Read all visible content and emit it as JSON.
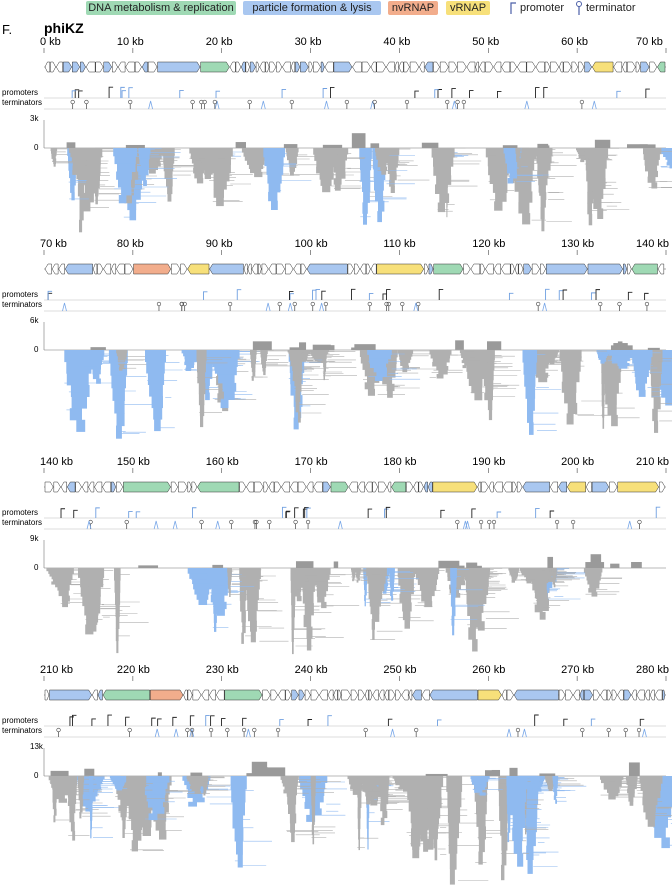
{
  "figure": {
    "panel_letter": "F.",
    "title": "phiKZ"
  },
  "legend": {
    "dna": {
      "label": "DNA metabolism & replication",
      "color": "#9fd9b4"
    },
    "particle": {
      "label": "particle formation & lysis",
      "color": "#a9c7f0"
    },
    "nvrnap": {
      "label": "nvRNAP",
      "color": "#f2ad8c"
    },
    "vrnap": {
      "label": "vRNAP",
      "color": "#f7e07a"
    },
    "promoter": {
      "label": "promoter",
      "icon": "promoter-icon"
    },
    "terminator": {
      "label": "terminator",
      "icon": "terminator-icon"
    }
  },
  "colors": {
    "default_gene": "#ffffff",
    "coverage_gray": "#b0b0b0",
    "coverage_blue": "#8fbaf0",
    "track_line": "#bbbbbb",
    "feature_dark": "#222222"
  },
  "track_labels": {
    "promoters": "promoters",
    "terminators": "terminators",
    "zero": "0"
  },
  "rows": [
    {
      "id": "row1",
      "start_kb": 0,
      "end_kb": 70,
      "ticks": [
        "0 kb",
        "10 kb",
        "20 kb",
        "30 kb",
        "40 kb",
        "50 kb",
        "60 kb",
        "70 kb"
      ],
      "ymax_label": "3k",
      "depth": 0.9
    },
    {
      "id": "row2",
      "start_kb": 70,
      "end_kb": 140,
      "ticks": [
        "70 kb",
        "80 kb",
        "90 kb",
        "100 kb",
        "110 kb",
        "120 kb",
        "130 kb",
        "140 kb"
      ],
      "ymax_label": "6k",
      "depth": 0.95
    },
    {
      "id": "row3",
      "start_kb": 140,
      "end_kb": 210,
      "ticks": [
        "140 kb",
        "150 kb",
        "160 kb",
        "170 kb",
        "180 kb",
        "190 kb",
        "200 kb",
        "210 kb"
      ],
      "ymax_label": "9k",
      "depth": 0.95
    },
    {
      "id": "row4",
      "start_kb": 210,
      "end_kb": 280,
      "ticks": [
        "210 kb",
        "220 kb",
        "230 kb",
        "240 kb",
        "250 kb",
        "260 kb",
        "270 kb",
        "280 kb"
      ],
      "ymax_label": "13k",
      "depth": 1.0
    }
  ]
}
